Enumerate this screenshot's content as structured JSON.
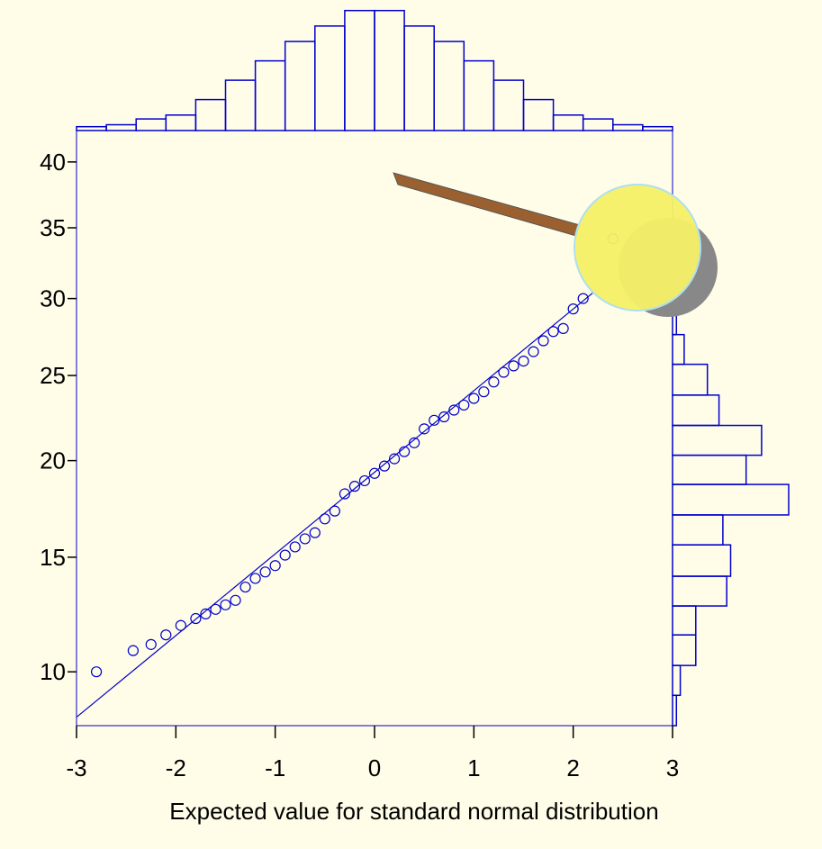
{
  "chart_data": {
    "type": "normal-probability",
    "x_axis_title": "Expected value for standard normal distribution",
    "xlim": [
      -3,
      3
    ],
    "xticks": [
      -3,
      -2,
      -1,
      0,
      1,
      2,
      3
    ],
    "ylim": [
      8,
      42.5
    ],
    "yticks": [
      10,
      15,
      20,
      25,
      30,
      35,
      40
    ],
    "yscale": "sqrt",
    "color": "#0000cc",
    "points": {
      "x": [
        -2.8,
        -2.43,
        -2.25,
        -2.1,
        -1.95,
        -1.8,
        -1.7,
        -1.6,
        -1.5,
        -1.4,
        -1.3,
        -1.2,
        -1.1,
        -1.0,
        -0.9,
        -0.8,
        -0.7,
        -0.6,
        -0.5,
        -0.4,
        -0.3,
        -0.2,
        -0.1,
        0,
        0.1,
        0.2,
        0.3,
        0.4,
        0.5,
        0.6,
        0.7,
        0.8,
        0.9,
        1.0,
        1.1,
        1.2,
        1.3,
        1.4,
        1.5,
        1.6,
        1.7,
        1.8,
        1.9,
        2.0,
        2.1,
        2.4
      ],
      "y": [
        10.0,
        10.85,
        11.1,
        11.5,
        11.9,
        12.2,
        12.4,
        12.6,
        12.8,
        13.0,
        13.6,
        14.0,
        14.3,
        14.6,
        15.1,
        15.5,
        15.9,
        16.2,
        16.9,
        17.3,
        18.2,
        18.6,
        18.9,
        19.3,
        19.7,
        20.1,
        20.5,
        21.0,
        21.8,
        22.3,
        22.5,
        22.9,
        23.2,
        23.6,
        24.0,
        24.6,
        25.2,
        25.6,
        25.9,
        26.5,
        27.2,
        27.8,
        28.0,
        29.3,
        30.0,
        34.2
      ]
    },
    "fit_line": {
      "x": [
        -3,
        2.2
      ],
      "y": [
        8.3,
        30.4
      ]
    },
    "x_histogram": {
      "bins": [
        -3,
        -2.7,
        -2.4,
        -2.1,
        -1.8,
        -1.5,
        -1.2,
        -0.9,
        -0.6,
        -0.3,
        0,
        0.3,
        0.6,
        0.9,
        1.2,
        1.5,
        1.8,
        2.1,
        2.4,
        2.7,
        3
      ],
      "counts": [
        1,
        1.5,
        3,
        4,
        8,
        13,
        18,
        23,
        27,
        31,
        31,
        27,
        23,
        18,
        13,
        8,
        4,
        3,
        1.5,
        1
      ]
    },
    "y_histogram": {
      "bins": [
        8,
        9.1,
        10.25,
        11.5,
        12.75,
        14.1,
        15.6,
        17.1,
        18.7,
        20.3,
        22,
        23.8,
        25.7,
        27.6,
        29.6,
        31.6
      ],
      "counts": [
        1,
        2,
        6,
        6,
        14,
        15,
        13,
        30,
        19,
        23,
        12,
        9,
        3,
        1,
        1
      ]
    }
  }
}
